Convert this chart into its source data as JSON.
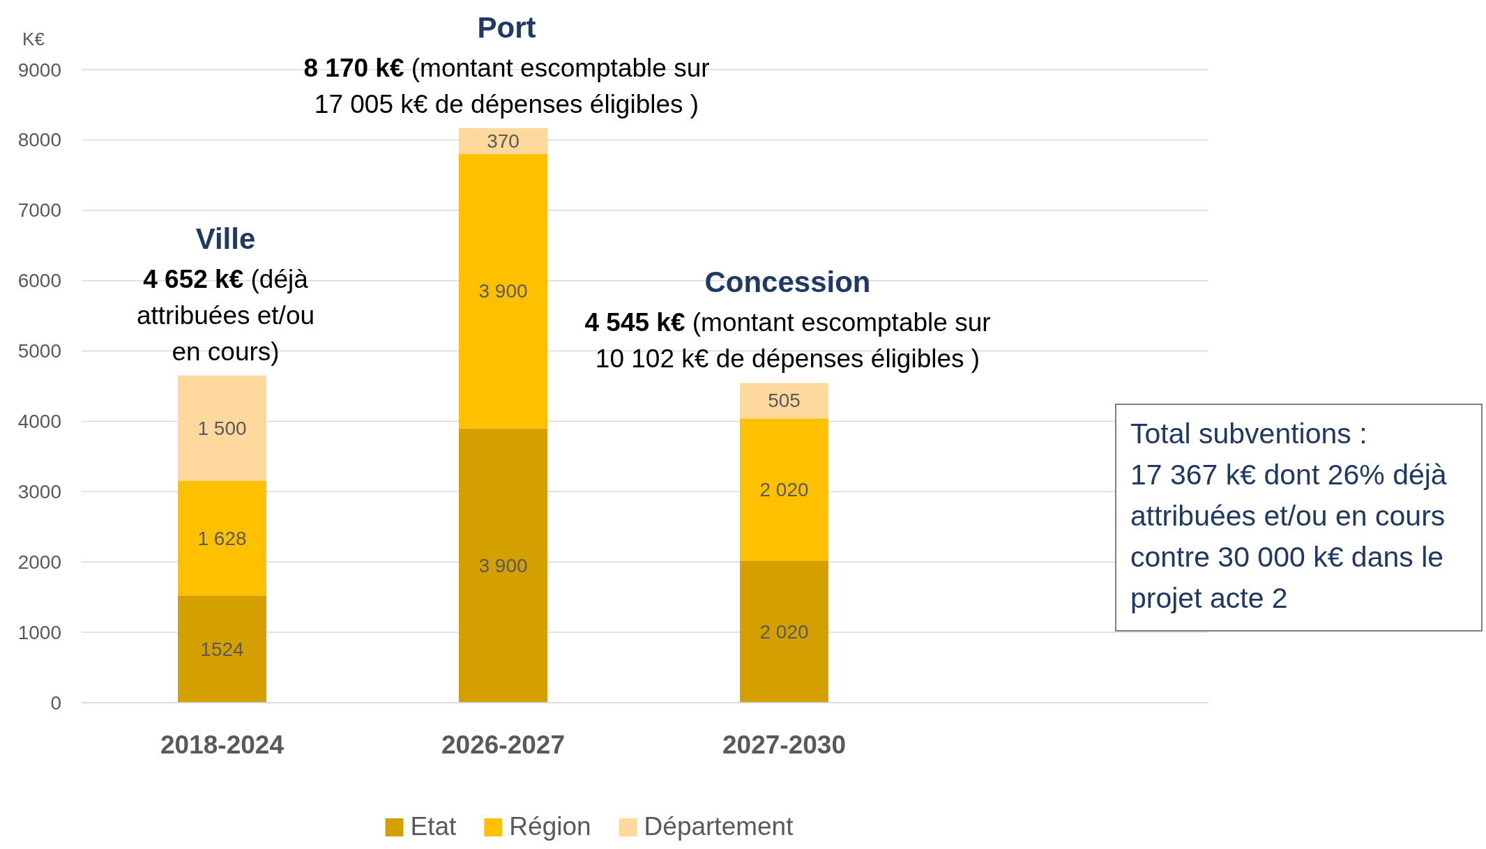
{
  "chart_data": {
    "type": "bar",
    "stacked": true,
    "ylabel": "K€",
    "categories": [
      "2018-2024",
      "2026-2027",
      "2027-2030"
    ],
    "series": [
      {
        "name": "Etat",
        "color": "#d4a000",
        "values": [
          1524,
          3900,
          2020
        ],
        "value_labels": [
          "1524",
          "3 900",
          "2 020"
        ]
      },
      {
        "name": "Région",
        "color": "#ffc000",
        "values": [
          1628,
          3900,
          2020
        ],
        "value_labels": [
          "1 628",
          "3 900",
          "2 020"
        ]
      },
      {
        "name": "Département",
        "color": "#ffd89e",
        "values": [
          1500,
          370,
          505
        ],
        "value_labels": [
          "1 500",
          "370",
          "505"
        ]
      }
    ],
    "ylim": [
      0,
      9000
    ],
    "yticks": [
      0,
      1000,
      2000,
      3000,
      4000,
      5000,
      6000,
      7000,
      8000,
      9000
    ],
    "grid": "y",
    "legend": "bottom",
    "annotations": [
      "Ville",
      "4 652 k€ (déjà attribuées et/ou en cours)",
      "Port",
      "8 170 k€ (montant escomptable sur 17 005 k€ de dépenses éligibles )",
      "Concession",
      "4 545 k€ (montant escomptable sur 10 102 k€ de dépenses éligibles )",
      "Total subventions : 17 367 k€ dont 26% déjà attribuées et/ou en cours contre 30 000 k€ dans le projet acte 2"
    ]
  }
}
